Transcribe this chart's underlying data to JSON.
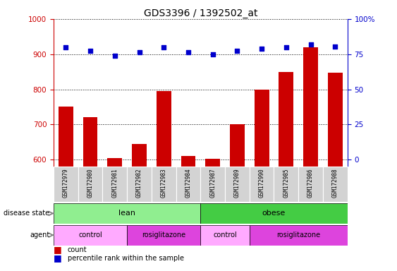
{
  "title": "GDS3396 / 1392502_at",
  "samples": [
    "GSM172979",
    "GSM172980",
    "GSM172981",
    "GSM172982",
    "GSM172983",
    "GSM172984",
    "GSM172987",
    "GSM172989",
    "GSM172990",
    "GSM172985",
    "GSM172986",
    "GSM172988"
  ],
  "bar_values": [
    750,
    720,
    605,
    645,
    795,
    610,
    603,
    700,
    800,
    850,
    920,
    848
  ],
  "dot_values": [
    920,
    910,
    895,
    905,
    920,
    905,
    900,
    910,
    915,
    920,
    928,
    922
  ],
  "ylim_left": [
    580,
    1000
  ],
  "ylim_right": [
    0,
    100
  ],
  "yticks_left": [
    600,
    700,
    800,
    900,
    1000
  ],
  "yticks_right": [
    0,
    25,
    50,
    75,
    100
  ],
  "bar_color": "#cc0000",
  "dot_color": "#0000cc",
  "disease_state_lean_color": "#90ee90",
  "disease_state_obese_color": "#44cc44",
  "agent_control_color": "#ffaaff",
  "agent_rosi_color": "#dd44dd",
  "tick_label_bg": "#d3d3d3",
  "n_lean": 6,
  "n_obese": 6,
  "lean_control_count": 3,
  "lean_rosi_count": 3,
  "obese_control_count": 2,
  "obese_rosi_count": 4
}
